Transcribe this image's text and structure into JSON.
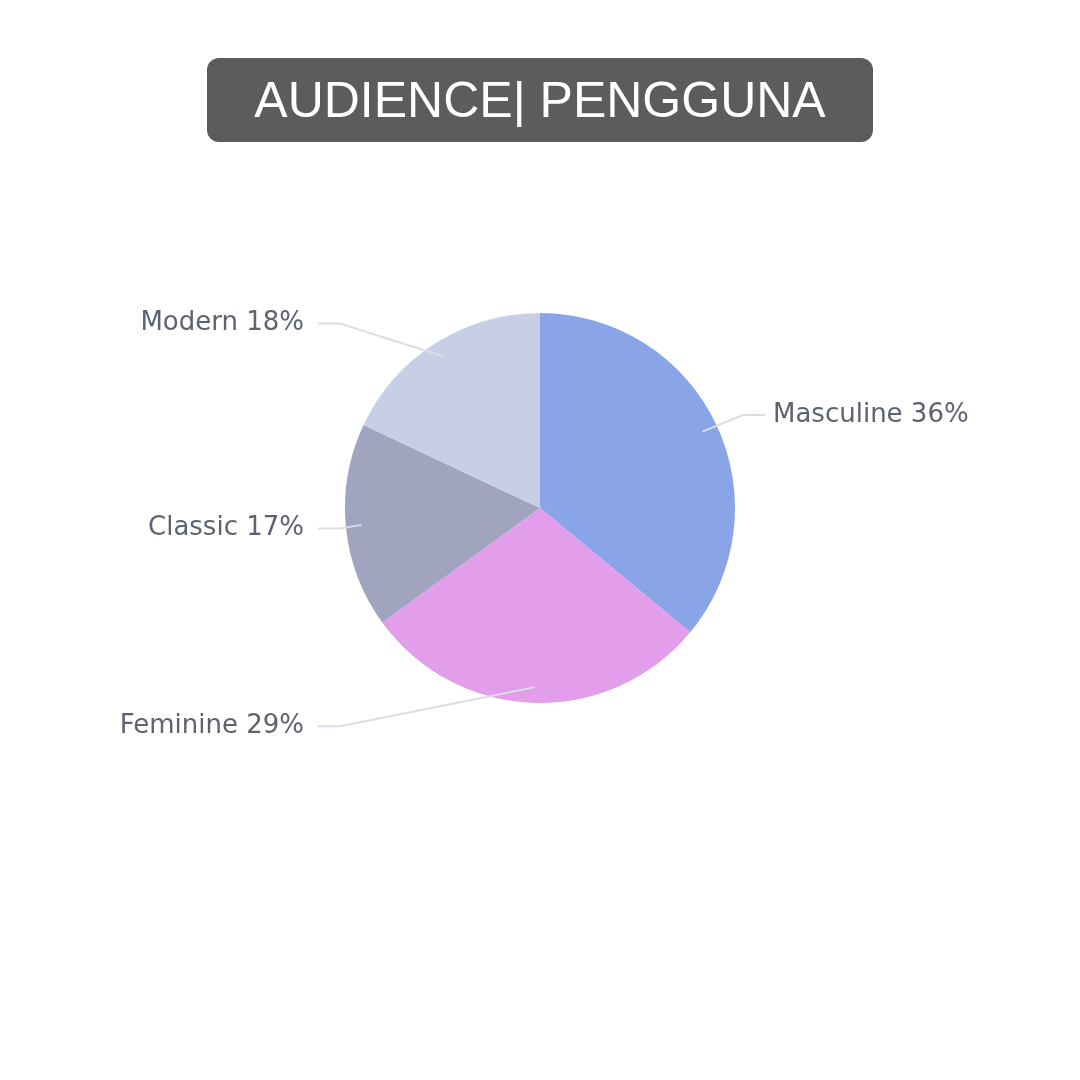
{
  "chart_data": {
    "type": "pie",
    "title": "AUDIENCE| PENGGUNA",
    "categories": [
      "Masculine",
      "Feminine",
      "Classic",
      "Modern"
    ],
    "values": [
      36,
      29,
      17,
      18
    ],
    "colors": [
      "#8aa4e8",
      "#e29deb",
      "#a1a4bf",
      "#c7cfe6"
    ],
    "value_labels": [
      "36%",
      "29%",
      "17%",
      "18%"
    ],
    "legend": false
  }
}
